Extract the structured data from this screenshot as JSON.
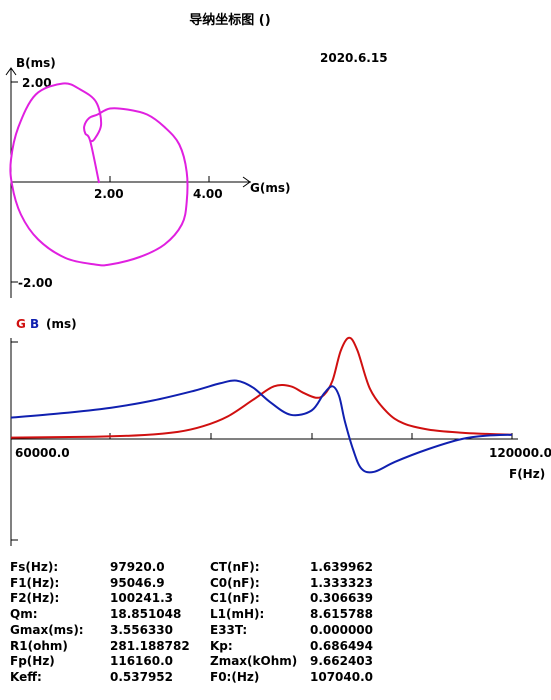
{
  "header": {
    "title": "导纳坐标图 ()",
    "date": "2020.6.15"
  },
  "admittance_plot": {
    "x_axis_label": "G(ms)",
    "y_axis_label": "B(ms)",
    "tick_labels": {
      "y_pos": "2.00",
      "y_neg": "-2.00",
      "x1": "2.00",
      "x2": "4.00"
    }
  },
  "frequency_plot": {
    "legend_g": "G",
    "legend_b": "B",
    "legend_unit": "(ms)",
    "x_start_label": "60000.0",
    "x_end_label": "120000.0",
    "x_axis_label": "F(Hz)"
  },
  "params": [
    {
      "label": "Fs(Hz):",
      "value": "97920.0",
      "label2": "CT(nF):",
      "value2": "1.639962"
    },
    {
      "label": "F1(Hz):",
      "value": "95046.9",
      "label2": "C0(nF):",
      "value2": "1.333323"
    },
    {
      "label": "F2(Hz):",
      "value": "100241.3",
      "label2": "C1(nF):",
      "value2": "0.306639"
    },
    {
      "label": "Qm:",
      "value": "18.851048",
      "label2": "L1(mH):",
      "value2": "8.615788"
    },
    {
      "label": "Gmax(ms):",
      "value": "3.556330",
      "label2": "E33T:",
      "value2": "0.000000"
    },
    {
      "label": "R1(ohm)",
      "value": "281.188782",
      "label2": "Kp:",
      "value2": "0.686494"
    },
    {
      "label": "Fp(Hz)",
      "value": "116160.0",
      "label2": "Zmax(kOhm)",
      "value2": "9.662403"
    },
    {
      "label": "Keff:",
      "value": "0.537952",
      "label2": "F0:(Hz)",
      "value2": "107040.0"
    }
  ],
  "colors": {
    "circle": "#e020e0",
    "g_curve": "#d01010",
    "b_curve": "#1020b0"
  },
  "chart_data": [
    {
      "type": "scatter",
      "title": "",
      "xlabel": "G(ms)",
      "ylabel": "B(ms)",
      "xlim": [
        -0.05,
        4.8
      ],
      "ylim": [
        -2.3,
        2.3
      ],
      "series": [
        {
          "values": [
            [
              1.78,
              -0.02
            ],
            [
              1.6,
              0.82
            ],
            [
              1.5,
              0.97
            ],
            [
              1.48,
              1.12
            ],
            [
              1.58,
              1.28
            ],
            [
              1.75,
              1.35
            ],
            [
              2.0,
              1.47
            ],
            [
              2.35,
              1.45
            ],
            [
              2.75,
              1.35
            ],
            [
              3.1,
              1.1
            ],
            [
              3.4,
              0.75
            ],
            [
              3.55,
              0.2
            ],
            [
              3.55,
              -0.4
            ],
            [
              3.45,
              -0.85
            ],
            [
              3.1,
              -1.25
            ],
            [
              2.6,
              -1.5
            ],
            [
              2.0,
              -1.65
            ],
            [
              1.7,
              -1.65
            ],
            [
              1.1,
              -1.52
            ],
            [
              0.55,
              -1.15
            ],
            [
              0.2,
              -0.65
            ],
            [
              0.02,
              -0.05
            ],
            [
              0.0,
              0.45
            ],
            [
              0.15,
              1.1
            ],
            [
              0.5,
              1.75
            ],
            [
              1.05,
              1.97
            ],
            [
              1.4,
              1.85
            ],
            [
              1.72,
              1.6
            ],
            [
              1.82,
              1.15
            ],
            [
              1.68,
              0.85
            ],
            [
              1.6,
              0.82
            ]
          ]
        }
      ]
    },
    {
      "type": "line",
      "title": "",
      "xlabel": "F(Hz)",
      "ylabel": "",
      "xlim": [
        60000,
        120000
      ],
      "ylim": [
        -1.7,
        3.6
      ],
      "series": [
        {
          "name": "G",
          "x": [
            60000,
            70000,
            76000,
            80000,
            83000,
            86000,
            89000,
            91500,
            93500,
            95000,
            96500,
            97500,
            98500,
            99500,
            100500,
            101500,
            103000,
            105000,
            107000,
            110000,
            114000,
            117000,
            120000
          ],
          "y": [
            0.05,
            0.08,
            0.14,
            0.25,
            0.45,
            0.8,
            1.38,
            1.85,
            1.85,
            1.62,
            1.45,
            1.55,
            2.05,
            3.1,
            3.55,
            3.1,
            1.75,
            0.95,
            0.55,
            0.33,
            0.22,
            0.18,
            0.15
          ]
        },
        {
          "name": "B",
          "x": [
            60000,
            66000,
            72000,
            77000,
            82000,
            85000,
            87000,
            89000,
            91000,
            93500,
            96000,
            97500,
            98500,
            99300,
            100000,
            101000,
            102000,
            103500,
            106000,
            110000,
            114000,
            117000,
            120000
          ],
          "y": [
            0.75,
            0.9,
            1.1,
            1.35,
            1.7,
            1.95,
            2.05,
            1.8,
            1.3,
            0.85,
            1.0,
            1.6,
            1.85,
            1.5,
            0.6,
            -0.4,
            -1.05,
            -1.15,
            -0.8,
            -0.35,
            0.0,
            0.12,
            0.15
          ]
        }
      ]
    }
  ]
}
